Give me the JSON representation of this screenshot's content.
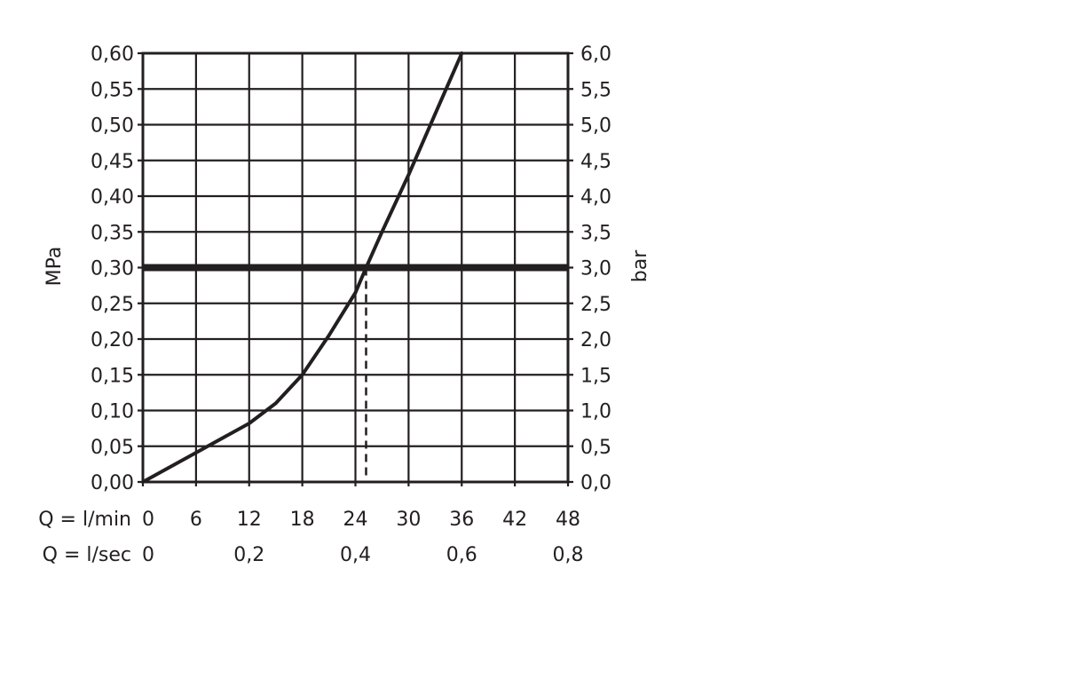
{
  "chart_data": {
    "type": "line",
    "title": "",
    "ylabel": "MPa",
    "y2label": "bar",
    "xlim": [
      0,
      48
    ],
    "ylim": [
      0,
      0.6
    ],
    "y2lim": [
      0,
      6.0
    ],
    "grid": true,
    "x_ticks": [
      "0",
      "6",
      "12",
      "18",
      "24",
      "30",
      "36",
      "42",
      "48"
    ],
    "x_tick_values": [
      0,
      6,
      12,
      18,
      24,
      30,
      36,
      42,
      48
    ],
    "x_row_label": "Q = l/min",
    "x2_row_label": "Q = l/sec",
    "x2_ticks": [
      "0",
      "0,2",
      "0,4",
      "0,6",
      "0,8"
    ],
    "x2_tick_values": [
      0,
      12,
      24,
      36,
      48
    ],
    "y_ticks": [
      "0,00",
      "0,05",
      "0,10",
      "0,15",
      "0,20",
      "0,25",
      "0,30",
      "0,35",
      "0,40",
      "0,45",
      "0,50",
      "0,55",
      "0,60"
    ],
    "y_tick_values": [
      0,
      0.05,
      0.1,
      0.15,
      0.2,
      0.25,
      0.3,
      0.35,
      0.4,
      0.45,
      0.5,
      0.55,
      0.6
    ],
    "y2_ticks": [
      "0,0",
      "0,5",
      "1,0",
      "1,5",
      "2,0",
      "2,5",
      "3,0",
      "3,5",
      "4,0",
      "4,5",
      "5,0",
      "5,5",
      "6,0"
    ],
    "series": [
      {
        "x": [
          0,
          6,
          12,
          15,
          18,
          21,
          24,
          25.2,
          27,
          30,
          33,
          36
        ],
        "y": [
          0,
          0.041,
          0.082,
          0.11,
          0.15,
          0.205,
          0.265,
          0.3,
          0.35,
          0.43,
          0.515,
          0.6
        ],
        "color": "#231f20"
      }
    ],
    "reference_line": {
      "y": 0.3,
      "color": "#231f20"
    },
    "operating_point": {
      "x": 25.2,
      "y": 0.3
    }
  }
}
